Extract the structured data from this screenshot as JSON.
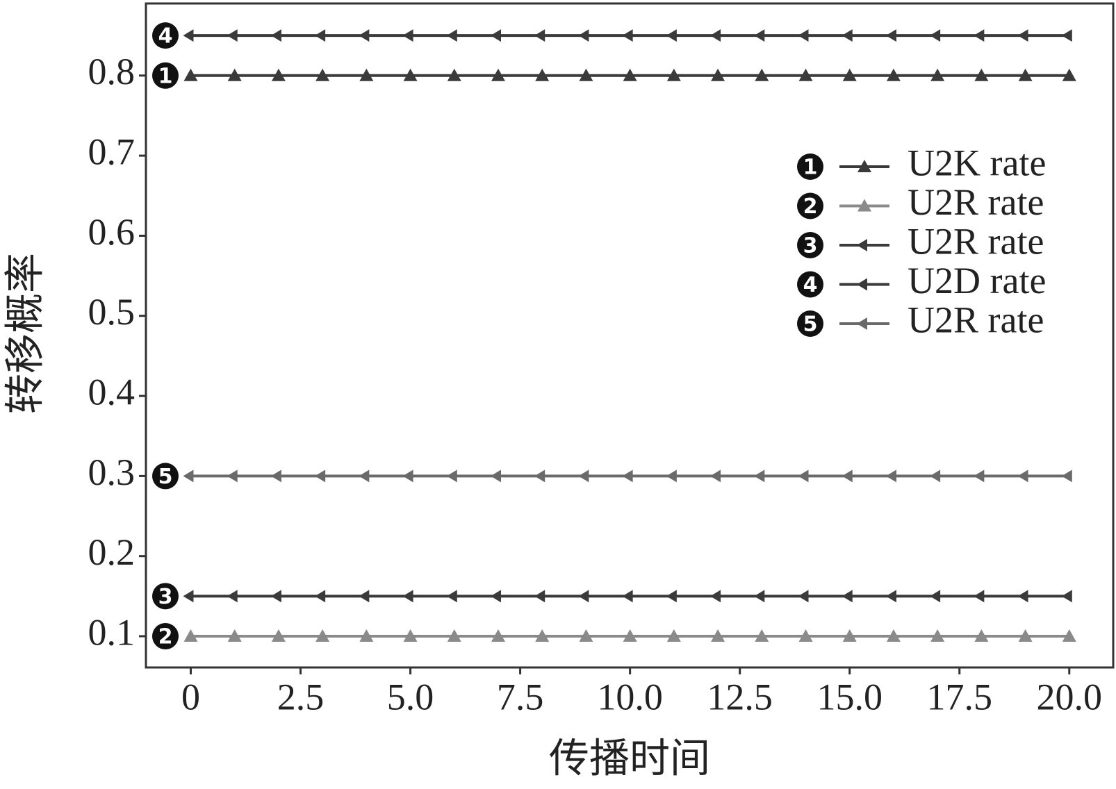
{
  "chart_data": {
    "type": "line",
    "x_label": "传播时间",
    "y_label": "转移概率",
    "x": [
      0,
      1,
      2,
      3,
      4,
      5,
      6,
      7,
      8,
      9,
      10,
      11,
      12,
      13,
      14,
      15,
      16,
      17,
      18,
      19,
      20
    ],
    "series": [
      {
        "name": "U2K rate",
        "badge": "1",
        "marker": "triangle",
        "color": "#3a3a3a",
        "values": [
          0.8,
          0.8,
          0.8,
          0.8,
          0.8,
          0.8,
          0.8,
          0.8,
          0.8,
          0.8,
          0.8,
          0.8,
          0.8,
          0.8,
          0.8,
          0.8,
          0.8,
          0.8,
          0.8,
          0.8,
          0.8
        ]
      },
      {
        "name": "U2R rate",
        "badge": "2",
        "marker": "triangle",
        "color": "#8a8a8a",
        "values": [
          0.1,
          0.1,
          0.1,
          0.1,
          0.1,
          0.1,
          0.1,
          0.1,
          0.1,
          0.1,
          0.1,
          0.1,
          0.1,
          0.1,
          0.1,
          0.1,
          0.1,
          0.1,
          0.1,
          0.1,
          0.1
        ]
      },
      {
        "name": "U2R rate",
        "badge": "3",
        "marker": "left-arrow",
        "color": "#3a3a3a",
        "values": [
          0.15,
          0.15,
          0.15,
          0.15,
          0.15,
          0.15,
          0.15,
          0.15,
          0.15,
          0.15,
          0.15,
          0.15,
          0.15,
          0.15,
          0.15,
          0.15,
          0.15,
          0.15,
          0.15,
          0.15,
          0.15
        ]
      },
      {
        "name": "U2D rate",
        "badge": "4",
        "marker": "left-arrow",
        "color": "#3a3a3a",
        "values": [
          0.85,
          0.85,
          0.85,
          0.85,
          0.85,
          0.85,
          0.85,
          0.85,
          0.85,
          0.85,
          0.85,
          0.85,
          0.85,
          0.85,
          0.85,
          0.85,
          0.85,
          0.85,
          0.85,
          0.85,
          0.85
        ]
      },
      {
        "name": "U2R rate",
        "badge": "5",
        "marker": "left-arrow",
        "color": "#6a6a6a",
        "values": [
          0.3,
          0.3,
          0.3,
          0.3,
          0.3,
          0.3,
          0.3,
          0.3,
          0.3,
          0.3,
          0.3,
          0.3,
          0.3,
          0.3,
          0.3,
          0.3,
          0.3,
          0.3,
          0.3,
          0.3,
          0.3
        ]
      }
    ],
    "xlim": [
      -1.02,
      21.0
    ],
    "ylim": [
      0.061,
      0.89
    ],
    "xticks": [
      0,
      2.5,
      {
        "value": 5,
        "label": "5.0"
      },
      7.5,
      {
        "value": 10,
        "label": "10.0"
      },
      12.5,
      {
        "value": 15,
        "label": "15.0"
      },
      17.5,
      {
        "value": 20,
        "label": "20.0"
      }
    ],
    "yticks": [
      0.1,
      0.2,
      0.3,
      0.4,
      0.5,
      0.6,
      0.7,
      0.8
    ],
    "grid": false,
    "legend": "upper right"
  }
}
